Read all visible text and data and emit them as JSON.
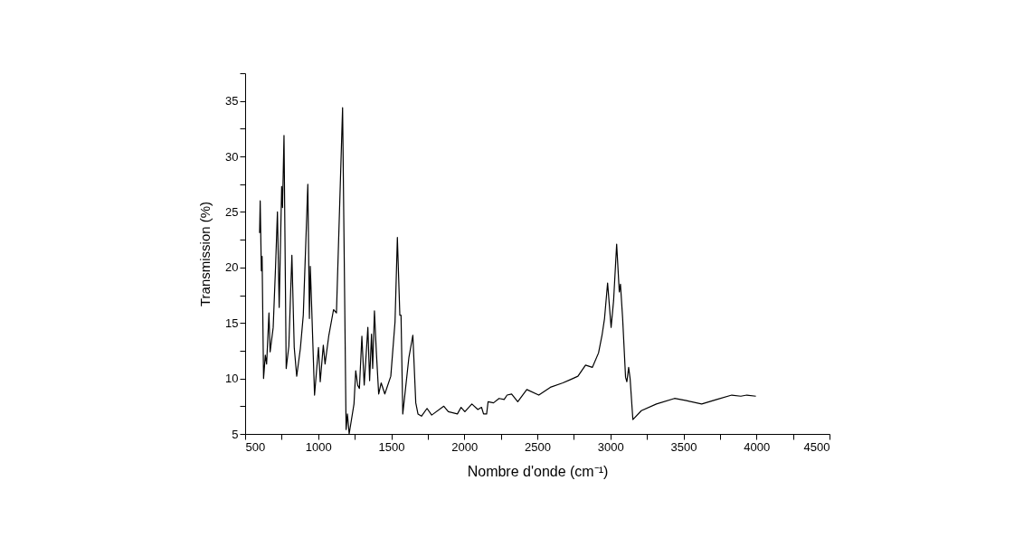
{
  "chart_data": {
    "type": "line",
    "xlabel": "Nombre d'onde (cm⁻¹)",
    "ylabel": "Transmission (%)",
    "xlim": [
      500,
      4500
    ],
    "ylim": [
      5,
      37.5
    ],
    "xticks": [
      500,
      {
        "value": 750,
        "label": null
      },
      1000,
      {
        "value": 1250,
        "label": null
      },
      1500,
      {
        "value": 1750,
        "label": null
      },
      2000,
      {
        "value": 2250,
        "label": null
      },
      2500,
      {
        "value": 2750,
        "label": null
      },
      3000,
      {
        "value": 3250,
        "label": null
      },
      3500,
      {
        "value": 3750,
        "label": null
      },
      4000,
      {
        "value": 4250,
        "label": null
      },
      4500
    ],
    "yticks": [
      5,
      {
        "value": 7.5,
        "label": null
      },
      10,
      {
        "value": 12.5,
        "label": null
      },
      15,
      {
        "value": 17.5,
        "label": null
      },
      20,
      {
        "value": 22.5,
        "label": null
      },
      25,
      {
        "value": 27.5,
        "label": null
      },
      30,
      {
        "value": 32.5,
        "label": null
      },
      35,
      {
        "value": 37.5,
        "label": null
      }
    ],
    "grid": false,
    "marker": "none",
    "line_style": "solid",
    "series": [
      {
        "color": "#000000",
        "x": [
          599,
          603,
          611,
          616,
          626,
          638,
          647,
          663,
          671,
          692,
          708,
          721,
          733,
          750,
          756,
          766,
          781,
          799,
          820,
          836,
          853,
          878,
          898,
          929,
          940,
          946,
          954,
          975,
          1002,
          1014,
          1035,
          1047,
          1072,
          1105,
          1125,
          1167,
          1191,
          1200,
          1212,
          1245,
          1257,
          1270,
          1282,
          1299,
          1315,
          1340,
          1352,
          1365,
          1373,
          1385,
          1398,
          1414,
          1431,
          1456,
          1497,
          1526,
          1542,
          1559,
          1567,
          1579,
          1621,
          1648,
          1668,
          1683,
          1707,
          1745,
          1777,
          1860,
          1891,
          1953,
          1978,
          2004,
          2052,
          2093,
          2118,
          2132,
          2153,
          2163,
          2200,
          2238,
          2273,
          2293,
          2324,
          2366,
          2428,
          2510,
          2589,
          2675,
          2727,
          2778,
          2830,
          2877,
          2919,
          2943,
          2960,
          2981,
          3005,
          3022,
          3043,
          3061,
          3069,
          3084,
          3104,
          3113,
          3125,
          3135,
          3154,
          3212,
          3315,
          3439,
          3521,
          3625,
          3728,
          3831,
          3893,
          3934,
          3996
        ],
        "values": [
          23.1,
          26.0,
          19.7,
          21.0,
          10.0,
          12.1,
          11.3,
          15.9,
          12.4,
          14.6,
          20.0,
          25.0,
          16.4,
          27.3,
          25.4,
          31.9,
          10.9,
          12.9,
          21.1,
          12.8,
          10.2,
          12.7,
          15.7,
          27.5,
          15.4,
          20.1,
          17.0,
          8.5,
          12.8,
          9.7,
          13.0,
          11.3,
          13.8,
          16.2,
          15.9,
          34.4,
          5.4,
          6.8,
          5.0,
          7.7,
          10.7,
          9.4,
          9.1,
          13.8,
          9.4,
          14.6,
          9.8,
          14.0,
          10.9,
          16.1,
          12.4,
          8.6,
          9.6,
          8.6,
          10.2,
          15.1,
          22.7,
          15.7,
          15.7,
          6.8,
          11.9,
          13.9,
          7.8,
          6.8,
          6.6,
          7.3,
          6.7,
          7.5,
          7.0,
          6.8,
          7.4,
          7.0,
          7.7,
          7.2,
          7.4,
          6.8,
          6.8,
          7.9,
          7.8,
          8.2,
          8.1,
          8.5,
          8.6,
          7.9,
          9.0,
          8.5,
          9.2,
          9.6,
          9.9,
          10.2,
          11.2,
          11.0,
          12.3,
          13.9,
          15.4,
          18.6,
          14.6,
          17.0,
          22.1,
          17.8,
          18.5,
          15.4,
          10.1,
          9.7,
          11.0,
          10.0,
          6.3,
          7.1,
          7.7,
          8.2,
          8.0,
          7.7,
          8.1,
          8.5,
          8.4,
          8.5,
          8.4
        ]
      }
    ]
  }
}
